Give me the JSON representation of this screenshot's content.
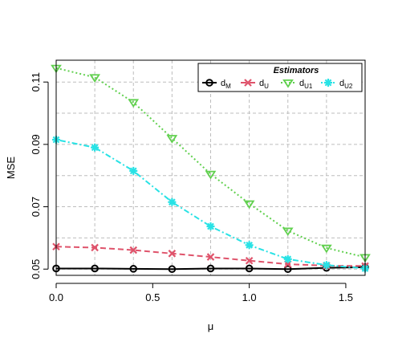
{
  "chart_data": {
    "type": "line",
    "title": "",
    "xlabel": "μ",
    "ylabel": "MSE",
    "xlim": [
      0,
      1.6
    ],
    "ylim": [
      0.048,
      0.117
    ],
    "grid": true,
    "x_ticks": [
      "0.0",
      "0.5",
      "1.0",
      "1.5"
    ],
    "x_tick_values": [
      0,
      0.5,
      1.0,
      1.5
    ],
    "y_ticks": [
      "0.05",
      "0.07",
      "0.09",
      "0.11"
    ],
    "y_tick_values": [
      0.05,
      0.07,
      0.09,
      0.11
    ],
    "legend": {
      "title": "Estimators",
      "position": "top-right"
    },
    "x": [
      0,
      0.2,
      0.4,
      0.6,
      0.8,
      1.0,
      1.2,
      1.4,
      1.6
    ],
    "series": [
      {
        "name": "d_M",
        "label_main": "d",
        "label_sub": "M",
        "color": "#000000",
        "marker": "circle",
        "dash": "solid",
        "values": [
          0.0502,
          0.0502,
          0.0501,
          0.05,
          0.0502,
          0.0502,
          0.05,
          0.0504,
          0.0506
        ]
      },
      {
        "name": "d_U",
        "label_main": "d",
        "label_sub": "U",
        "color": "#DF536B",
        "marker": "cross",
        "dash": "dashed",
        "values": [
          0.0572,
          0.0569,
          0.0561,
          0.055,
          0.0539,
          0.0527,
          0.0516,
          0.0511,
          0.051
        ]
      },
      {
        "name": "d_U1",
        "label_main": "d",
        "label_sub": "U1",
        "color": "#61D04F",
        "marker": "triangle-down",
        "dash": "dotted",
        "values": [
          0.1145,
          0.1115,
          0.1035,
          0.092,
          0.0805,
          0.071,
          0.0623,
          0.0568,
          0.0538
        ]
      },
      {
        "name": "d_U2",
        "label_main": "d",
        "label_sub": "U2",
        "color": "#28E2E5",
        "marker": "asterisk",
        "dash": "dotdash",
        "values": [
          0.0915,
          0.089,
          0.0815,
          0.0715,
          0.0637,
          0.0577,
          0.0532,
          0.0513,
          0.0502
        ]
      }
    ]
  }
}
